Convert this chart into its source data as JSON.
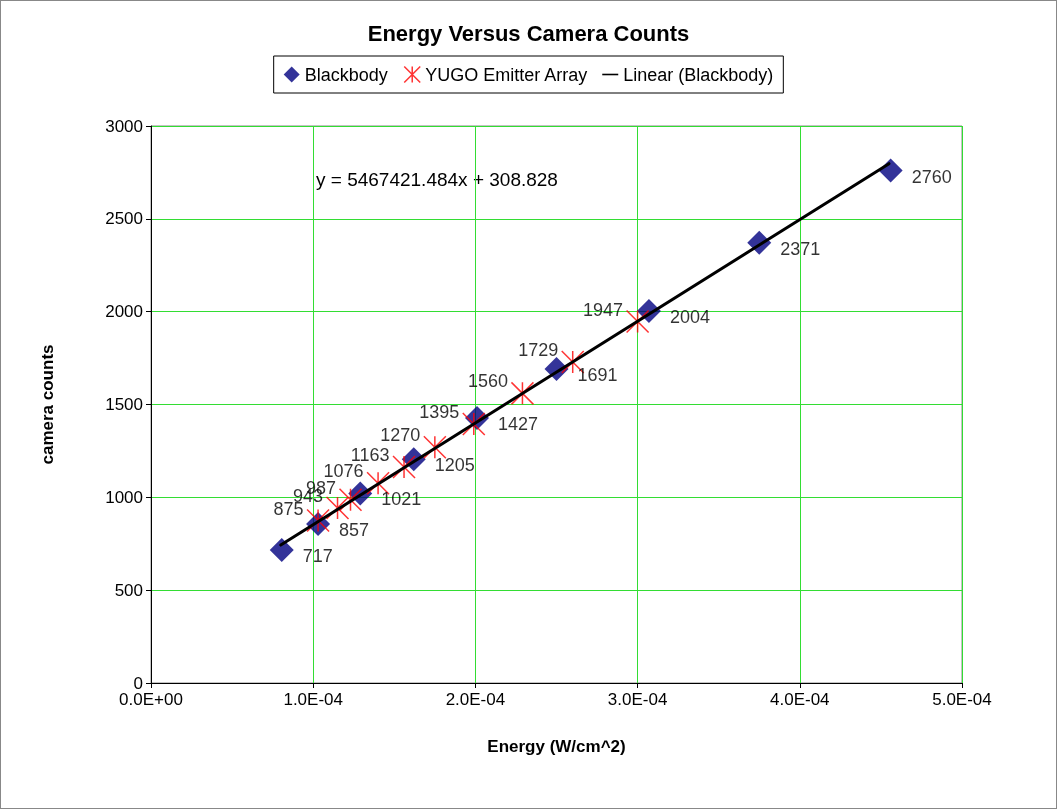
{
  "chart_data": {
    "type": "scatter",
    "title": "Energy Versus Camera Counts",
    "xlabel": "Energy (W/cm^2)",
    "ylabel": "camera counts",
    "annotations": [
      "y = 5467421.484x + 308.828"
    ],
    "series": [
      {
        "name": "Blackbody",
        "color": "#000080",
        "marker": "diamond",
        "x": [
          8.06e-05,
          0.000103,
          0.000129,
          0.000162,
          0.000201,
          0.00025,
          0.000307,
          0.000375,
          0.000456
        ],
        "values": [
          717,
          857,
          1021,
          1205,
          1427,
          1691,
          2004,
          2371,
          2760
        ],
        "value_labels": [
          "717",
          "857",
          "1021",
          "1205",
          "1427",
          "1691",
          "2004",
          "2371",
          "2760"
        ]
      },
      {
        "name": "YUGO Emitter Array",
        "color": "#ff0000",
        "marker": "cross",
        "x": [
          0.000103,
          0.000115,
          0.000123,
          0.00014,
          0.000156,
          0.000175,
          0.000199,
          0.000229,
          0.00026,
          0.0003
        ],
        "values": [
          875,
          943,
          987,
          1076,
          1163,
          1270,
          1395,
          1560,
          1729,
          1947
        ],
        "value_labels": [
          "875",
          "943",
          "987",
          "1076",
          "1163",
          "1270",
          "1395",
          "1560",
          "1729",
          "1947"
        ]
      },
      {
        "name": "Linear (Blackbody)",
        "type": "line",
        "color": "#000000",
        "marker": "none",
        "line_style": "solid",
        "x": [
          8e-05,
          0.000455
        ],
        "values": [
          743,
          2797
        ]
      }
    ],
    "xlim": [
      0,
      0.0005
    ],
    "xticks": [
      {
        "value": 0,
        "label": "0.0E+00"
      },
      {
        "value": 0.0001,
        "label": "1.0E-04"
      },
      {
        "value": 0.0002,
        "label": "2.0E-04"
      },
      {
        "value": 0.0003,
        "label": "3.0E-04"
      },
      {
        "value": 0.0004,
        "label": "4.0E-04"
      },
      {
        "value": 0.0005,
        "label": "5.0E-04"
      }
    ],
    "ylim": [
      0,
      3000
    ],
    "yticks": [
      0,
      500,
      1000,
      1500,
      2000,
      2500,
      3000
    ],
    "grid": true,
    "legend": "top"
  }
}
